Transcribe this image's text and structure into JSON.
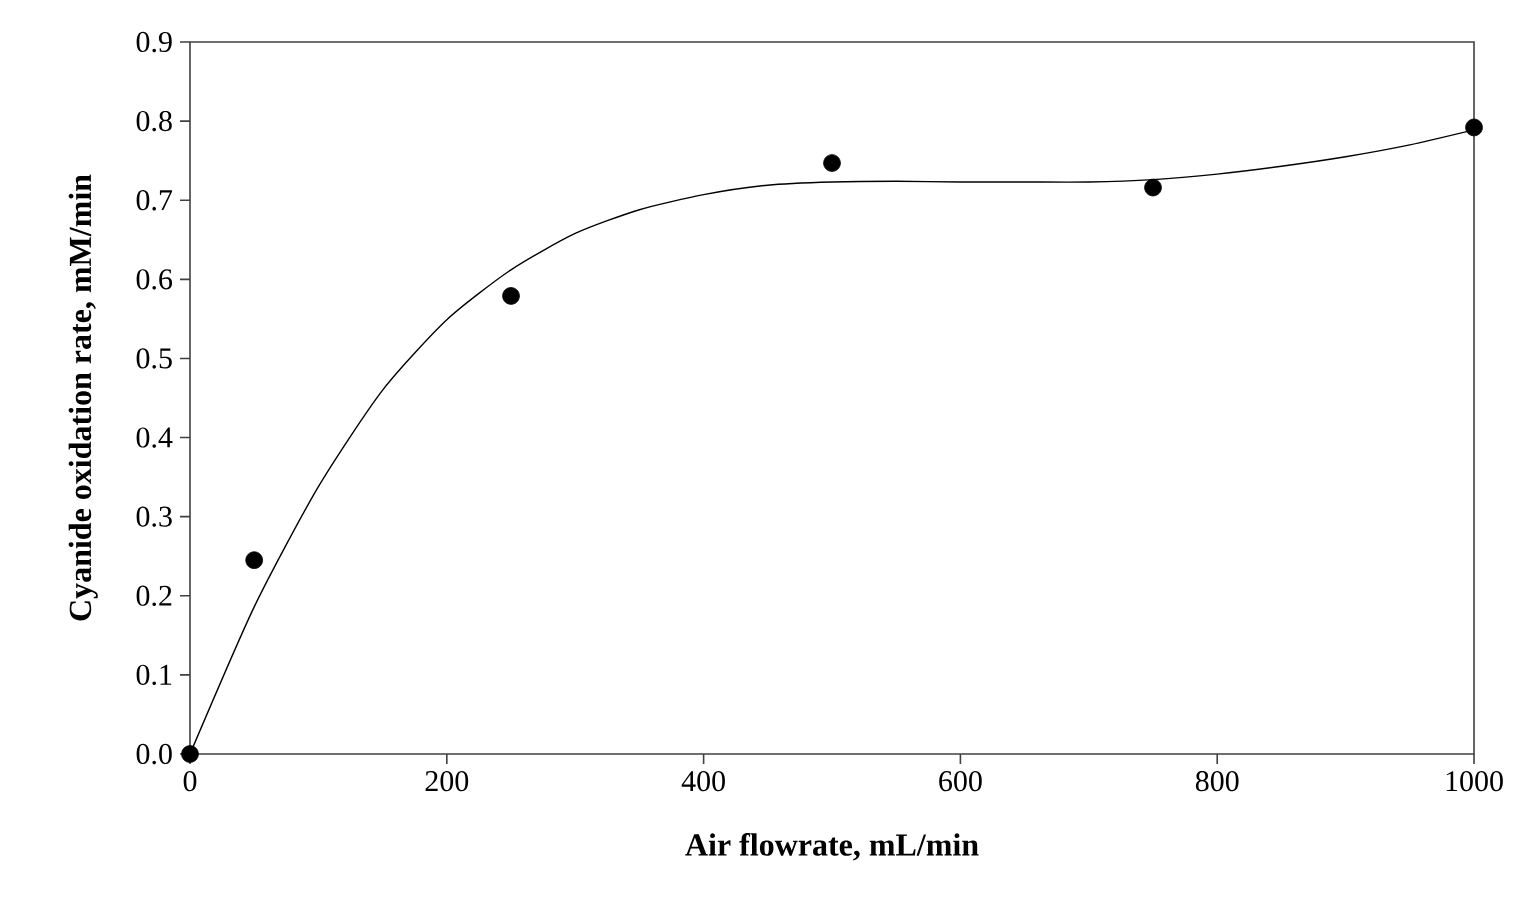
{
  "chart_data": {
    "type": "scatter",
    "xlabel": "Air flowrate, mL/min",
    "ylabel": "Cyanide oxidation rate, mM/min",
    "series": [
      {
        "color": "#000000",
        "marker": "circle",
        "x": [
          0,
          50,
          250,
          500,
          750,
          1000
        ],
        "values": [
          0.0,
          0.245,
          0.579,
          0.747,
          0.716,
          0.792
        ]
      },
      {
        "type": "line",
        "color": "#000000",
        "marker": "none",
        "line_style": "solid",
        "x": [
          0,
          50,
          100,
          150,
          200,
          250,
          300,
          350,
          400,
          450,
          500,
          550,
          600,
          650,
          700,
          750,
          800,
          850,
          900,
          950,
          1000
        ],
        "values": [
          0.0,
          0.186,
          0.338,
          0.46,
          0.549,
          0.612,
          0.658,
          0.688,
          0.707,
          0.719,
          0.723,
          0.724,
          0.723,
          0.723,
          0.723,
          0.726,
          0.733,
          0.743,
          0.755,
          0.77,
          0.789
        ]
      }
    ],
    "xlim": [
      0,
      1000
    ],
    "ylim": [
      0,
      0.9
    ],
    "xticks": [
      0,
      200,
      400,
      600,
      800,
      1000
    ],
    "yticks": [
      {
        "value": 0,
        "label": "0.0"
      },
      {
        "value": 0.1,
        "label": "0.1"
      },
      {
        "value": 0.2,
        "label": "0.2"
      },
      {
        "value": 0.3,
        "label": "0.3"
      },
      {
        "value": 0.4,
        "label": "0.4"
      },
      {
        "value": 0.5,
        "label": "0.5"
      },
      {
        "value": 0.6,
        "label": "0.6"
      },
      {
        "value": 0.7,
        "label": "0.7"
      },
      {
        "value": 0.8,
        "label": "0.8"
      },
      {
        "value": 0.9,
        "label": "0.9"
      }
    ]
  }
}
